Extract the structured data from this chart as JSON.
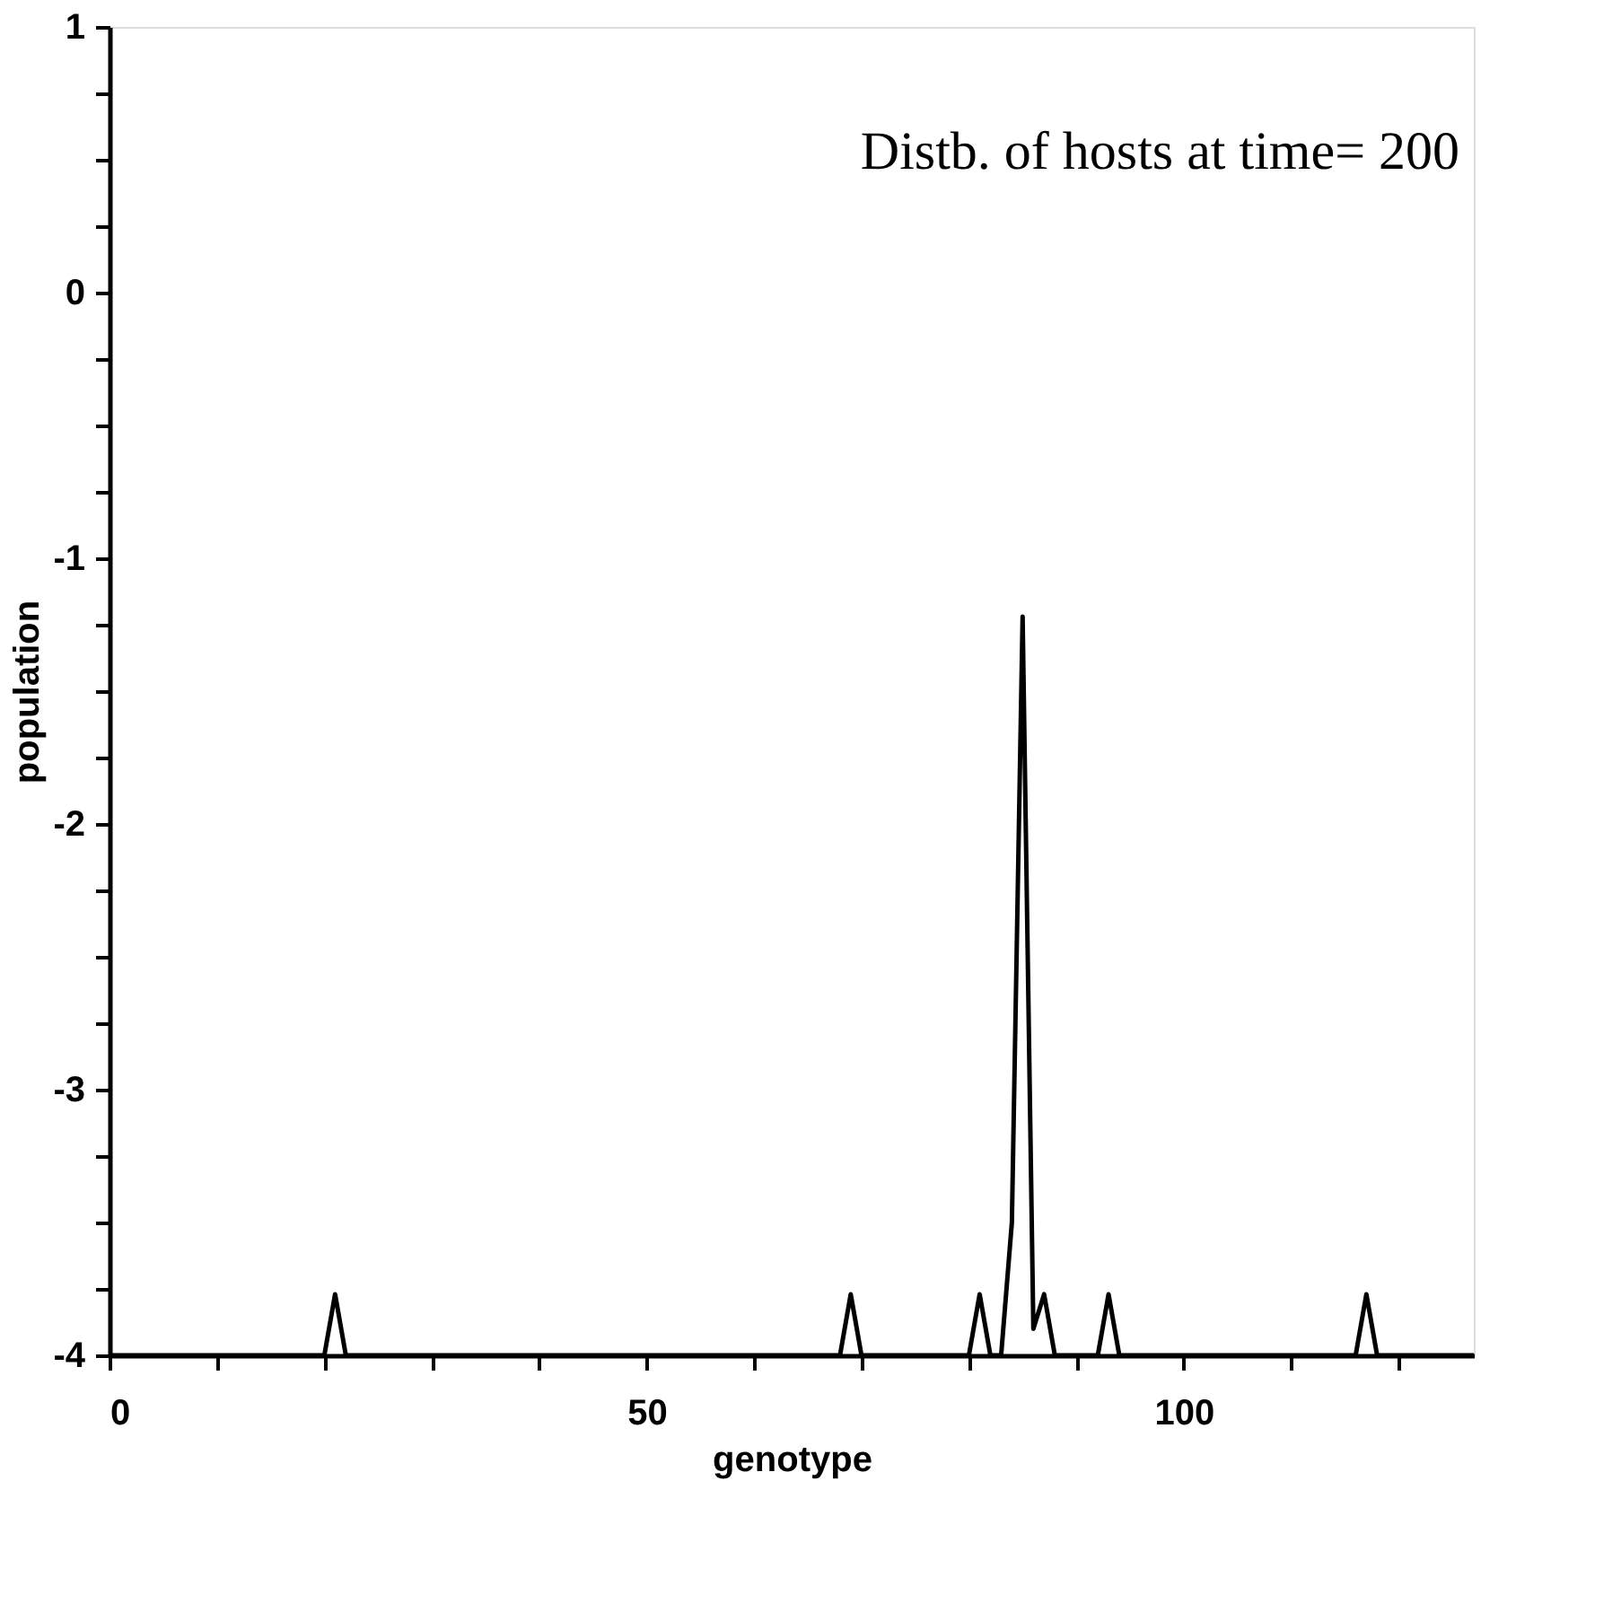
{
  "chart_data": {
    "type": "line",
    "title": "Distb. of hosts at time=  200",
    "xlabel": "genotype",
    "ylabel": "population",
    "x": [
      0,
      20,
      21,
      22,
      68,
      69,
      70,
      80,
      81,
      82,
      83,
      84,
      85,
      86,
      87,
      88,
      92,
      93,
      94,
      116,
      117,
      118,
      127
    ],
    "series": [
      {
        "color": "#000000",
        "values": [
          -4,
          -4,
          -3.77,
          -4,
          -4,
          -3.77,
          -4,
          -4,
          -3.77,
          -4,
          -4,
          -3.5,
          -1.22,
          -3.9,
          -3.77,
          -4,
          -4,
          -3.77,
          -4,
          -4,
          -3.77,
          -4,
          -4
        ]
      }
    ],
    "xlim": [
      0,
      127
    ],
    "ylim": [
      -4,
      1
    ],
    "xticks": [
      0,
      {
        "value": 10,
        "label": null
      },
      {
        "value": 20,
        "label": null
      },
      {
        "value": 30,
        "label": null
      },
      {
        "value": 40,
        "label": null
      },
      50,
      {
        "value": 60,
        "label": null
      },
      {
        "value": 70,
        "label": null
      },
      {
        "value": 80,
        "label": null
      },
      {
        "value": 90,
        "label": null
      },
      100,
      {
        "value": 110,
        "label": null
      },
      {
        "value": 120,
        "label": null
      }
    ],
    "yticks": [
      -4,
      {
        "value": -3.75,
        "label": null
      },
      {
        "value": -3.5,
        "label": null
      },
      {
        "value": -3.25,
        "label": null
      },
      -3,
      {
        "value": -2.75,
        "label": null
      },
      {
        "value": -2.5,
        "label": null
      },
      {
        "value": -2.25,
        "label": null
      },
      -2,
      {
        "value": -1.75,
        "label": null
      },
      {
        "value": -1.5,
        "label": null
      },
      {
        "value": -1.25,
        "label": null
      },
      -1,
      {
        "value": -0.75,
        "label": null
      },
      {
        "value": -0.5,
        "label": null
      },
      {
        "value": -0.25,
        "label": null
      },
      0,
      {
        "value": 0.25,
        "label": null
      },
      {
        "value": 0.5,
        "label": null
      },
      {
        "value": 0.75,
        "label": null
      },
      1
    ],
    "grid": false,
    "marker": "none",
    "line_style": "solid"
  }
}
